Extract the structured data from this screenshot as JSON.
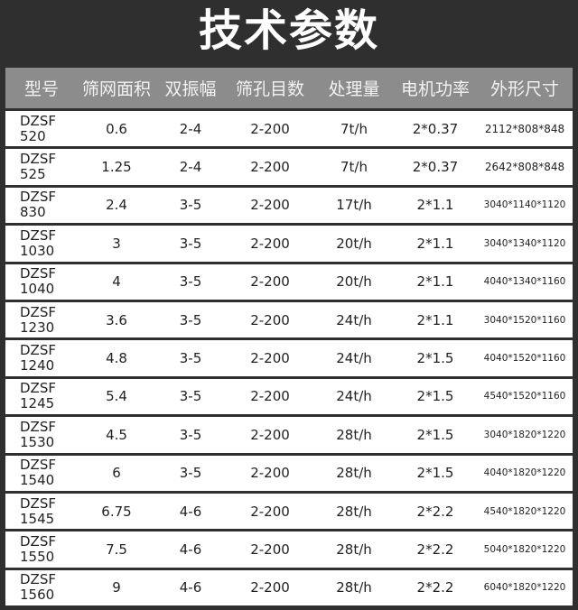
{
  "title": "技术参数",
  "table": {
    "headers": [
      "型号",
      "筛网面积",
      "双振幅",
      "筛孔目数",
      "处理量",
      "电机功率",
      "外形尺寸"
    ],
    "rows": [
      {
        "model_prefix": "DZSF",
        "model_num": "520",
        "area": "0.6",
        "amplitude": "2-4",
        "mesh": "2-200",
        "capacity": "7t/h",
        "power": "2*0.37",
        "size": "2112*808*848"
      },
      {
        "model_prefix": "DZSF",
        "model_num": "525",
        "area": "1.25",
        "amplitude": "2-4",
        "mesh": "2-200",
        "capacity": "7t/h",
        "power": "2*0.37",
        "size": "2642*808*848"
      },
      {
        "model_prefix": "DZSF",
        "model_num": "830",
        "area": "2.4",
        "amplitude": "3-5",
        "mesh": "2-200",
        "capacity": "17t/h",
        "power": "2*1.1",
        "size": "3040*1140*1120"
      },
      {
        "model_prefix": "DZSF",
        "model_num": "1030",
        "area": "3",
        "amplitude": "3-5",
        "mesh": "2-200",
        "capacity": "20t/h",
        "power": "2*1.1",
        "size": "3040*1340*1120"
      },
      {
        "model_prefix": "DZSF",
        "model_num": "1040",
        "area": "4",
        "amplitude": "3-5",
        "mesh": "2-200",
        "capacity": "20t/h",
        "power": "2*1.1",
        "size": "4040*1340*1160"
      },
      {
        "model_prefix": "DZSF",
        "model_num": "1230",
        "area": "3.6",
        "amplitude": "3-5",
        "mesh": "2-200",
        "capacity": "24t/h",
        "power": "2*1.1",
        "size": "3040*1520*1160"
      },
      {
        "model_prefix": "DZSF",
        "model_num": "1240",
        "area": "4.8",
        "amplitude": "3-5",
        "mesh": "2-200",
        "capacity": "24t/h",
        "power": "2*1.5",
        "size": "4040*1520*1160"
      },
      {
        "model_prefix": "DZSF",
        "model_num": "1245",
        "area": "5.4",
        "amplitude": "3-5",
        "mesh": "2-200",
        "capacity": "24t/h",
        "power": "2*1.5",
        "size": "4540*1520*1160"
      },
      {
        "model_prefix": "DZSF",
        "model_num": "1530",
        "area": "4.5",
        "amplitude": "3-5",
        "mesh": "2-200",
        "capacity": "28t/h",
        "power": "2*1.5",
        "size": "3040*1820*1220"
      },
      {
        "model_prefix": "DZSF",
        "model_num": "1540",
        "area": "6",
        "amplitude": "3-5",
        "mesh": "2-200",
        "capacity": "28t/h",
        "power": "2*1.5",
        "size": "4040*1820*1220"
      },
      {
        "model_prefix": "DZSF",
        "model_num": "1545",
        "area": "6.75",
        "amplitude": "4-6",
        "mesh": "2-200",
        "capacity": "28t/h",
        "power": "2*2.2",
        "size": "4540*1820*1220"
      },
      {
        "model_prefix": "DZSF",
        "model_num": "1550",
        "area": "7.5",
        "amplitude": "4-6",
        "mesh": "2-200",
        "capacity": "28t/h",
        "power": "2*2.2",
        "size": "5040*1820*1220"
      },
      {
        "model_prefix": "DZSF",
        "model_num": "1560",
        "area": "9",
        "amplitude": "4-6",
        "mesh": "2-200",
        "capacity": "28t/h",
        "power": "2*2.2",
        "size": "6040*1820*1220"
      }
    ]
  }
}
